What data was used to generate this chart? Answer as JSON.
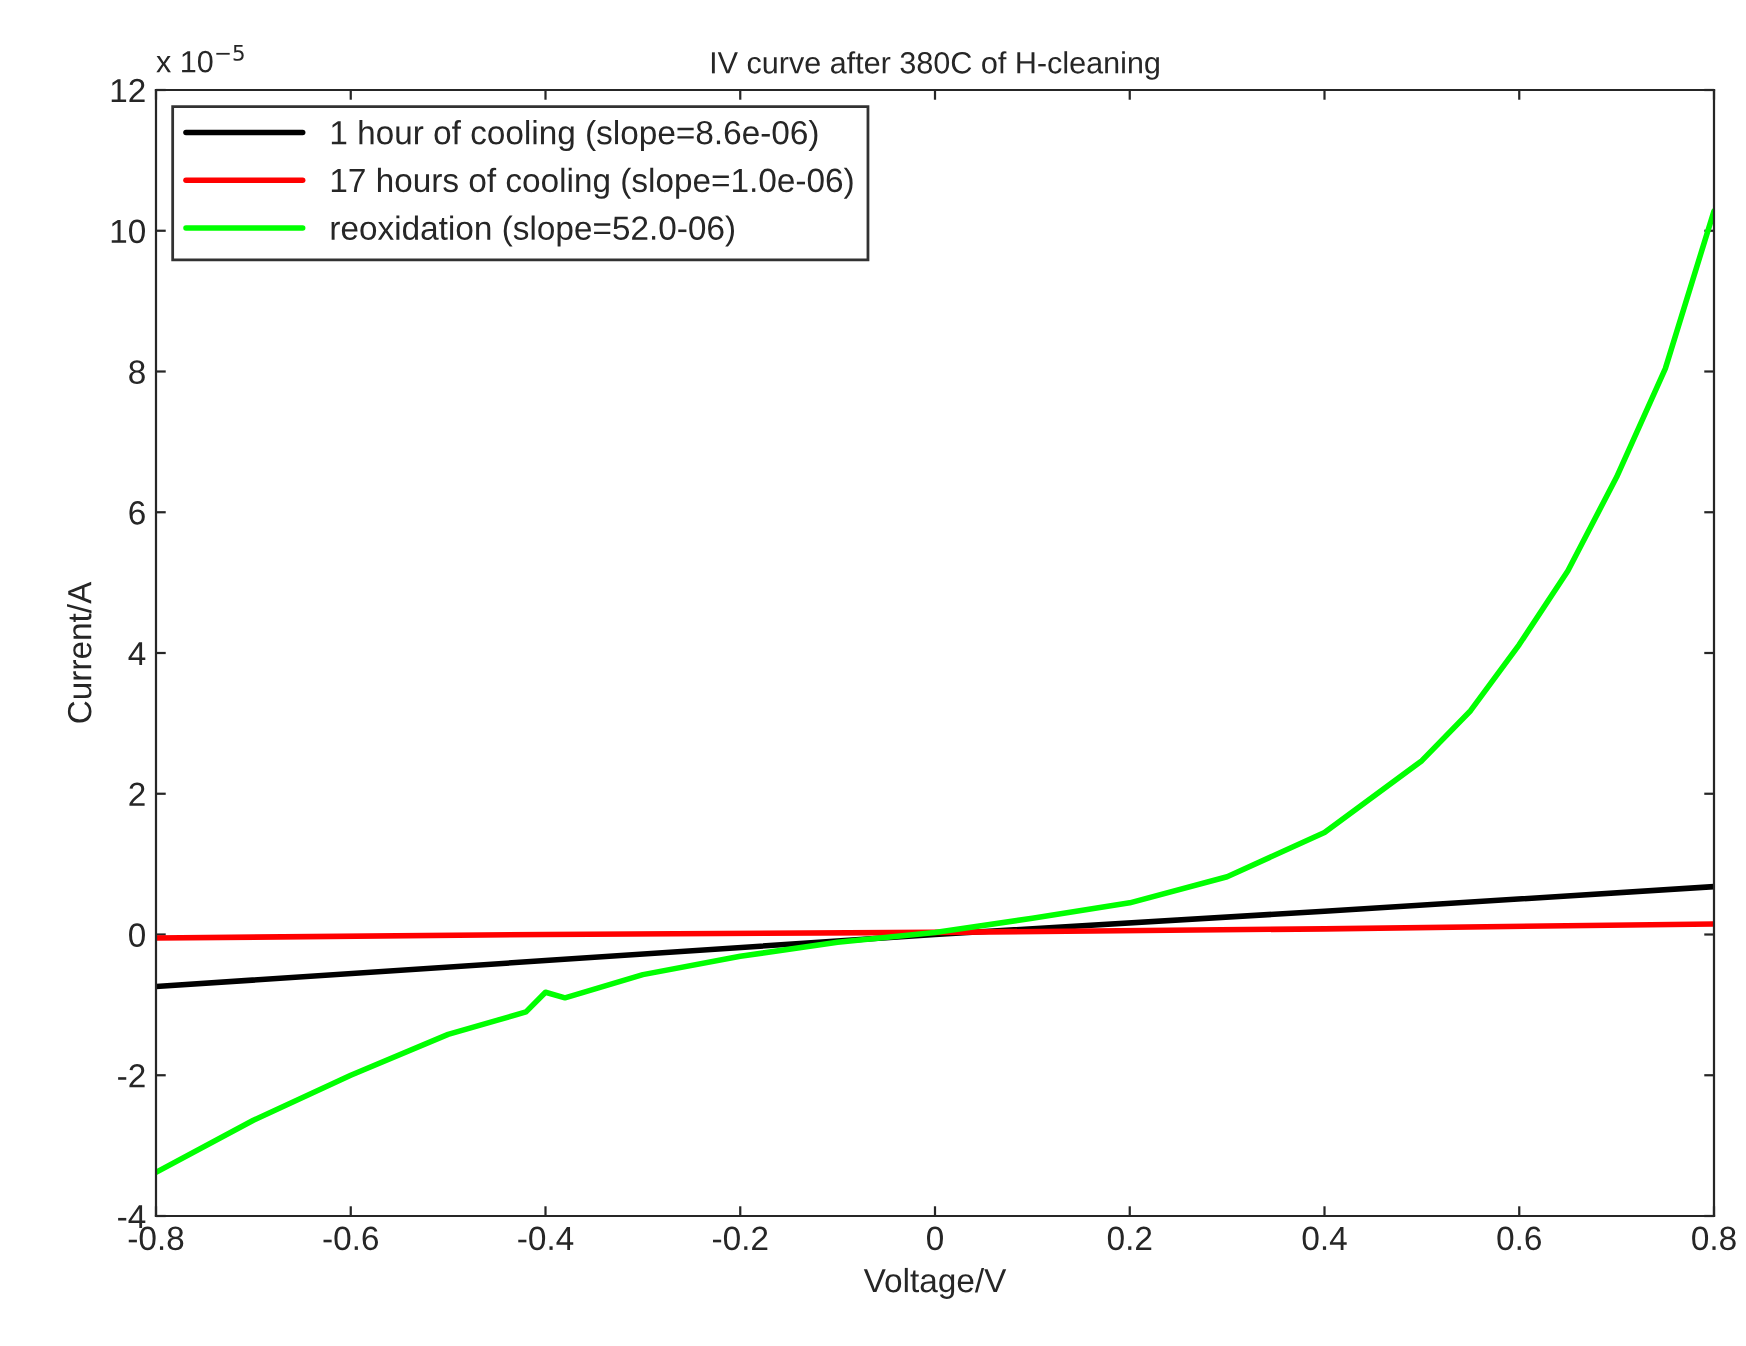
{
  "chart_data": {
    "type": "line",
    "title": "IV curve after 380C of H-cleaning",
    "xlabel": "Voltage/V",
    "ylabel": "Current/A",
    "annotations": [
      "x 10$^{−5}$"
    ],
    "series": [
      {
        "name": "1 hour of cooling (slope=8.6e-06)",
        "color": "#000000",
        "x": [
          -0.8,
          -0.4,
          0,
          0.4,
          0.8
        ],
        "values": [
          -0.74,
          -0.37,
          0.0,
          0.33,
          0.68
        ]
      },
      {
        "name": "17 hours of cooling (slope=1.0e-06)",
        "color": "#ff0000",
        "x": [
          -0.8,
          -0.4,
          0,
          0.4,
          0.8
        ],
        "values": [
          -0.05,
          0.0,
          0.03,
          0.08,
          0.15
        ]
      },
      {
        "name": "reoxidation (slope=52.0-06)",
        "color": "#00ff00",
        "x": [
          -0.8,
          -0.7,
          -0.6,
          -0.5,
          -0.45,
          -0.42,
          -0.4,
          -0.38,
          -0.3,
          -0.2,
          -0.1,
          0,
          0.1,
          0.2,
          0.3,
          0.4,
          0.5,
          0.55,
          0.6,
          0.65,
          0.7,
          0.75,
          0.8
        ],
        "values": [
          -3.38,
          -2.64,
          -2.0,
          -1.42,
          -1.22,
          -1.1,
          -0.82,
          -0.9,
          -0.57,
          -0.31,
          -0.11,
          0.03,
          0.23,
          0.45,
          0.82,
          1.45,
          2.47,
          3.18,
          4.12,
          5.17,
          6.5,
          8.04,
          10.28
        ]
      }
    ],
    "xlim": [
      -0.8,
      0.8
    ],
    "xticks": [
      -0.8,
      -0.6,
      -0.4,
      -0.2,
      0,
      0.2,
      0.4,
      0.6,
      0.8
    ],
    "ylim": [
      -4,
      12
    ],
    "yticks": [
      -4,
      -2,
      0,
      2,
      4,
      6,
      8,
      10,
      12
    ],
    "grid": false,
    "legend": "top left",
    "line_style": "solid",
    "marker": "none"
  }
}
